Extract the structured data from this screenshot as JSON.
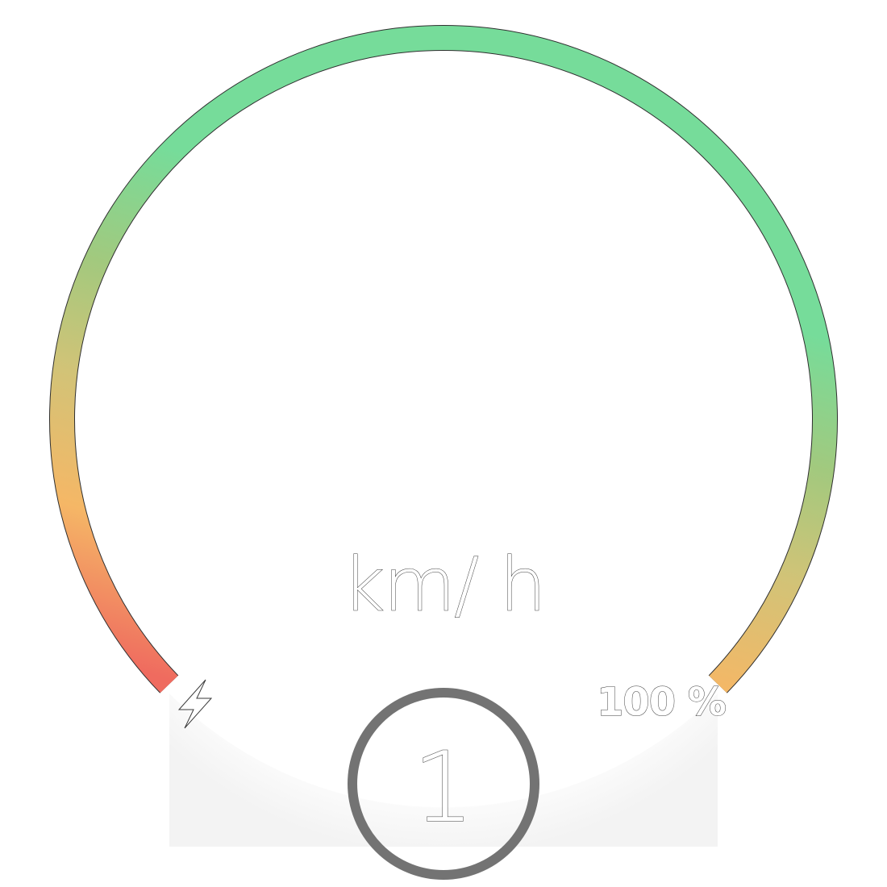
{
  "speed_gauge": {
    "unit": "km/ h",
    "level_fraction": 1.0,
    "arc_colors": {
      "low": "#ef6b5f",
      "mid_low": "#f5b766",
      "mid": "#d2c377",
      "mid_high": "#a2c97e",
      "high": "#76dc9a"
    }
  },
  "battery": {
    "icon": "lightning-bolt-icon",
    "percent_label": "100 %"
  },
  "gear": {
    "value": "1",
    "ring_color": "#737373"
  }
}
